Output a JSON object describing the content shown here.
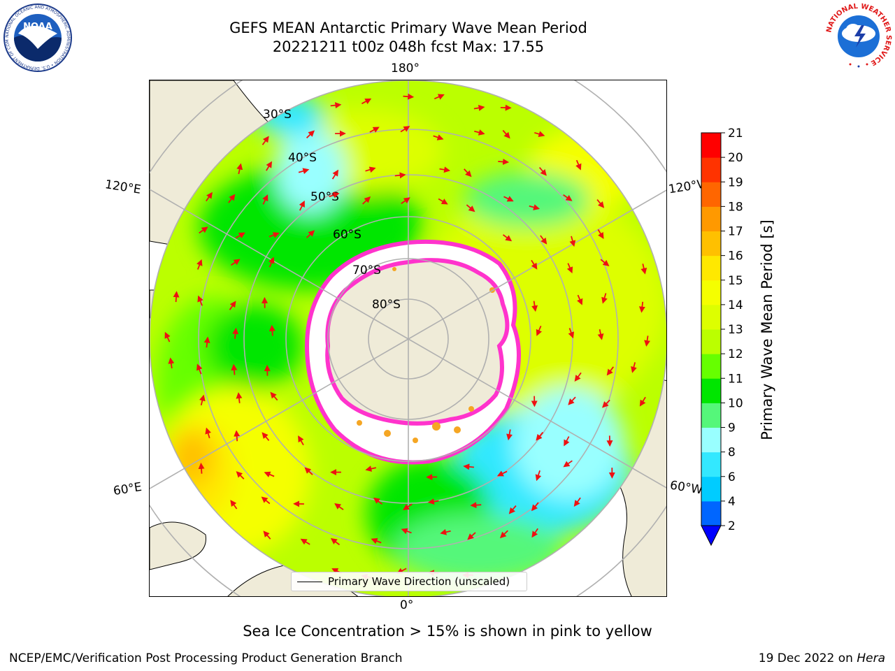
{
  "header": {
    "title_line1": "GEFS MEAN Antarctic Primary Wave Mean Period",
    "title_line2": "20221211 t00z 048h fcst   Max: 17.55"
  },
  "logos": {
    "left": {
      "icon": "noaa-logo",
      "text": "NOAA",
      "ring_text": "NATIONAL OCEANIC AND ATMOSPHERIC ADMINISTRATION • U.S. DEPARTMENT OF COMMERCE •"
    },
    "right": {
      "icon": "nws-logo",
      "ring_text": "NATIONAL WEATHER SERVICE"
    }
  },
  "map": {
    "projection": "south-polar-stereographic",
    "latitude_labels": [
      "30°S",
      "40°S",
      "50°S",
      "60°S",
      "70°S",
      "80°S"
    ],
    "longitude_labels": {
      "top": "180°",
      "bottom": "0°",
      "left_upper": "120°E",
      "left_lower": "60°E",
      "right_upper": "120°W",
      "right_lower": "60°W"
    },
    "colors": {
      "land": "#efebd8",
      "ice": "#ffffff",
      "ice_edge": "#ff33cc",
      "ice_inner": "#f5a623",
      "arrow": "#ee1111",
      "grid": "#b0b0b0"
    }
  },
  "legend": {
    "label": "Primary Wave Direction (unscaled)"
  },
  "colorbar": {
    "label": "Primary Wave Mean Period [s]",
    "ticks": [
      "2",
      "4",
      "6",
      "8",
      "9",
      "10",
      "11",
      "12",
      "13",
      "14",
      "15",
      "16",
      "17",
      "18",
      "19",
      "20",
      "21"
    ],
    "colors": [
      "#0066ff",
      "#00ccff",
      "#33e8ff",
      "#99ffff",
      "#55f77a",
      "#00e600",
      "#66ff00",
      "#bbff00",
      "#ddff00",
      "#f5ff00",
      "#ffe800",
      "#ffc000",
      "#ff9900",
      "#ff6600",
      "#ff3300",
      "#ff0000"
    ],
    "extend_color": "#0000ff"
  },
  "footer": {
    "subtitle": "Sea Ice Concentration > 15% is shown in pink to yellow",
    "credit": "NCEP/EMC/Verification Post Processing Product Generation Branch",
    "date": "19 Dec 2022 on ",
    "machine": "Hera"
  }
}
